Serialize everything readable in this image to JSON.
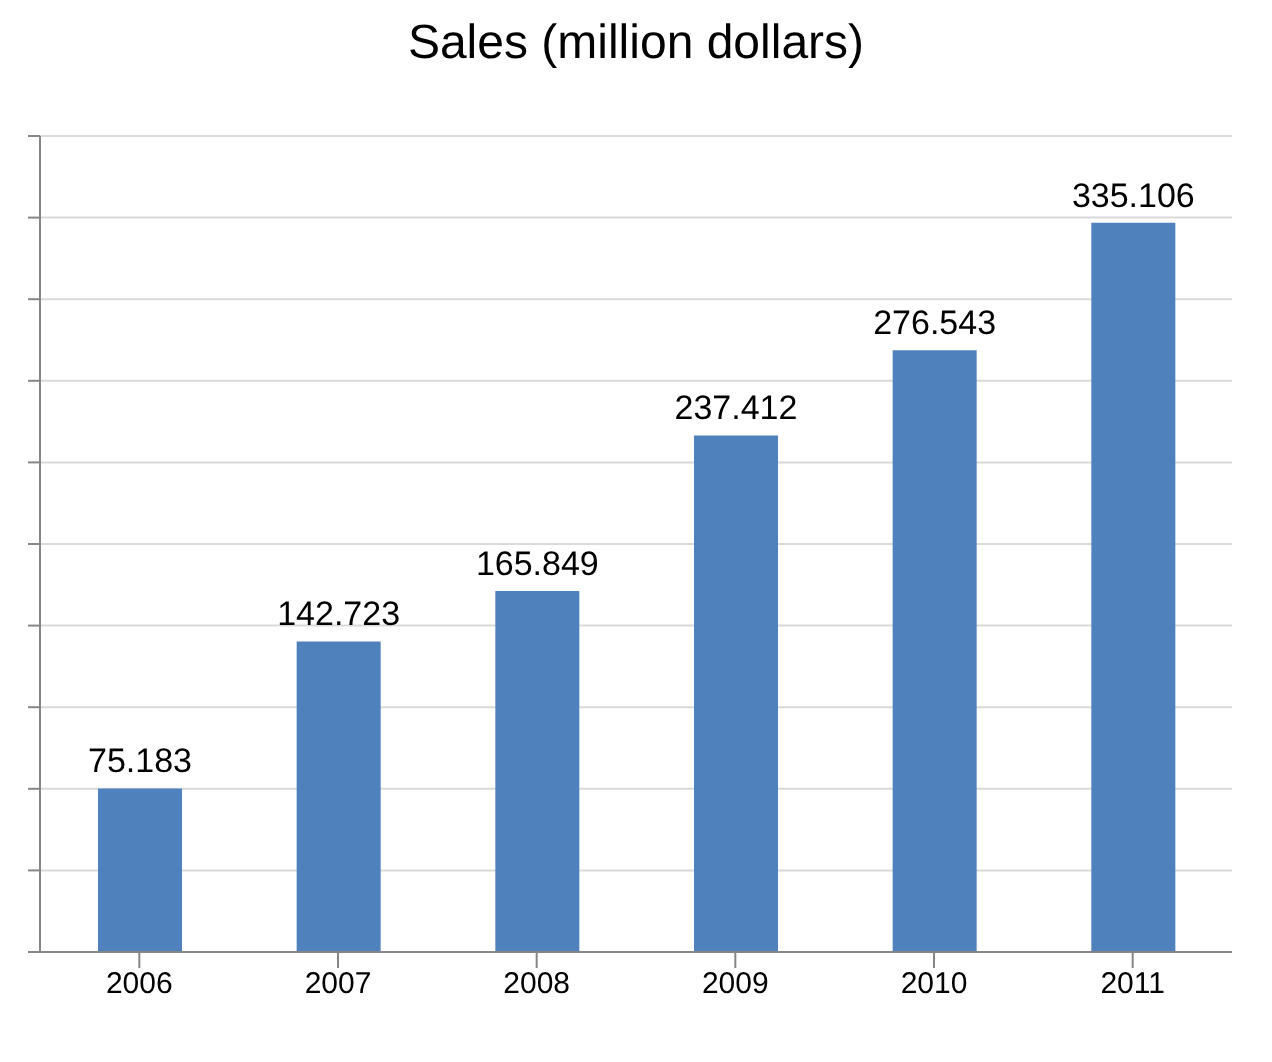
{
  "chart_data": {
    "type": "bar",
    "title": "Sales (million dollars)",
    "categories": [
      "2006",
      "2007",
      "2008",
      "2009",
      "2010",
      "2011"
    ],
    "values": [
      75.183,
      142.723,
      165.849,
      237.412,
      276.543,
      335.106
    ],
    "color": "#4f81bd",
    "data_labels": true,
    "grid": "y",
    "ylim": [
      0,
      375
    ],
    "yticks": [
      {
        "value": 0,
        "label": null
      },
      {
        "value": 37.5,
        "label": null
      },
      {
        "value": 75,
        "label": null
      },
      {
        "value": 112.5,
        "label": null
      },
      {
        "value": 150,
        "label": null
      },
      {
        "value": 187.5,
        "label": null
      },
      {
        "value": 225,
        "label": null
      },
      {
        "value": 262.5,
        "label": null
      },
      {
        "value": 300,
        "label": null
      },
      {
        "value": 337.5,
        "label": null
      },
      {
        "value": 375,
        "label": null
      }
    ],
    "tick_labels": "x"
  }
}
